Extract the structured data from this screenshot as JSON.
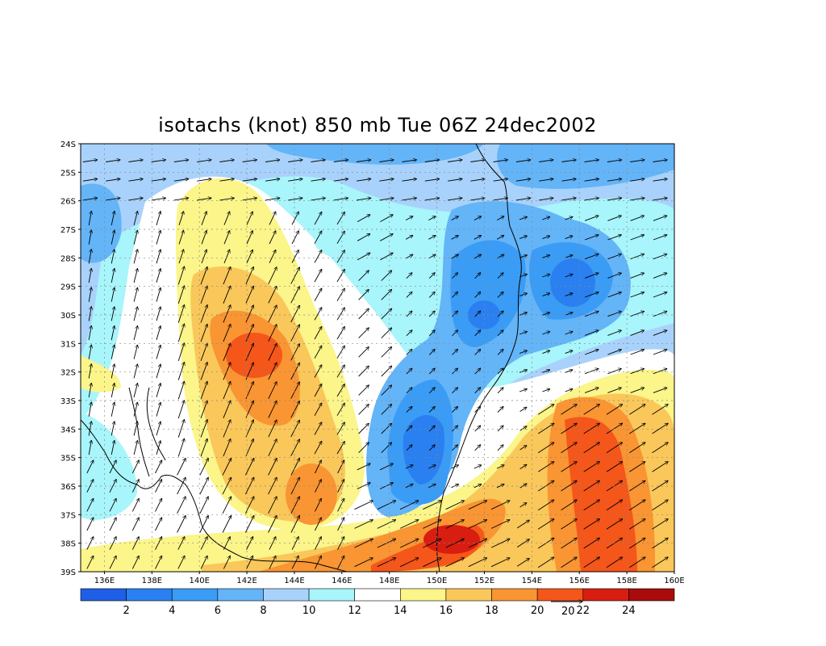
{
  "title": "isotachs (knot) 850 mb Tue 06Z 24dec2002",
  "lat_labels": [
    "24S",
    "25S",
    "26S",
    "27S",
    "28S",
    "29S",
    "30S",
    "31S",
    "32S",
    "33S",
    "34S",
    "35S",
    "36S",
    "37S",
    "38S",
    "39S"
  ],
  "lon_labels": [
    "136E",
    "138E",
    "140E",
    "142E",
    "144E",
    "146E",
    "148E",
    "150E",
    "152E",
    "154E",
    "156E",
    "158E",
    "160E"
  ],
  "colorbar": {
    "labels": [
      "2",
      "4",
      "6",
      "8",
      "10",
      "12",
      "14",
      "16",
      "18",
      "20",
      "22",
      "24"
    ],
    "colors": [
      "#1f5fe6",
      "#2a80f0",
      "#3a9cf5",
      "#64b4f8",
      "#a8d2fb",
      "#a8f5fb",
      "#ffffff",
      "#fbf58a",
      "#fac75a",
      "#f99532",
      "#f5561a",
      "#d81e10",
      "#a80c0c"
    ]
  },
  "vector_reference": "20",
  "coastline_color": "#000000"
}
